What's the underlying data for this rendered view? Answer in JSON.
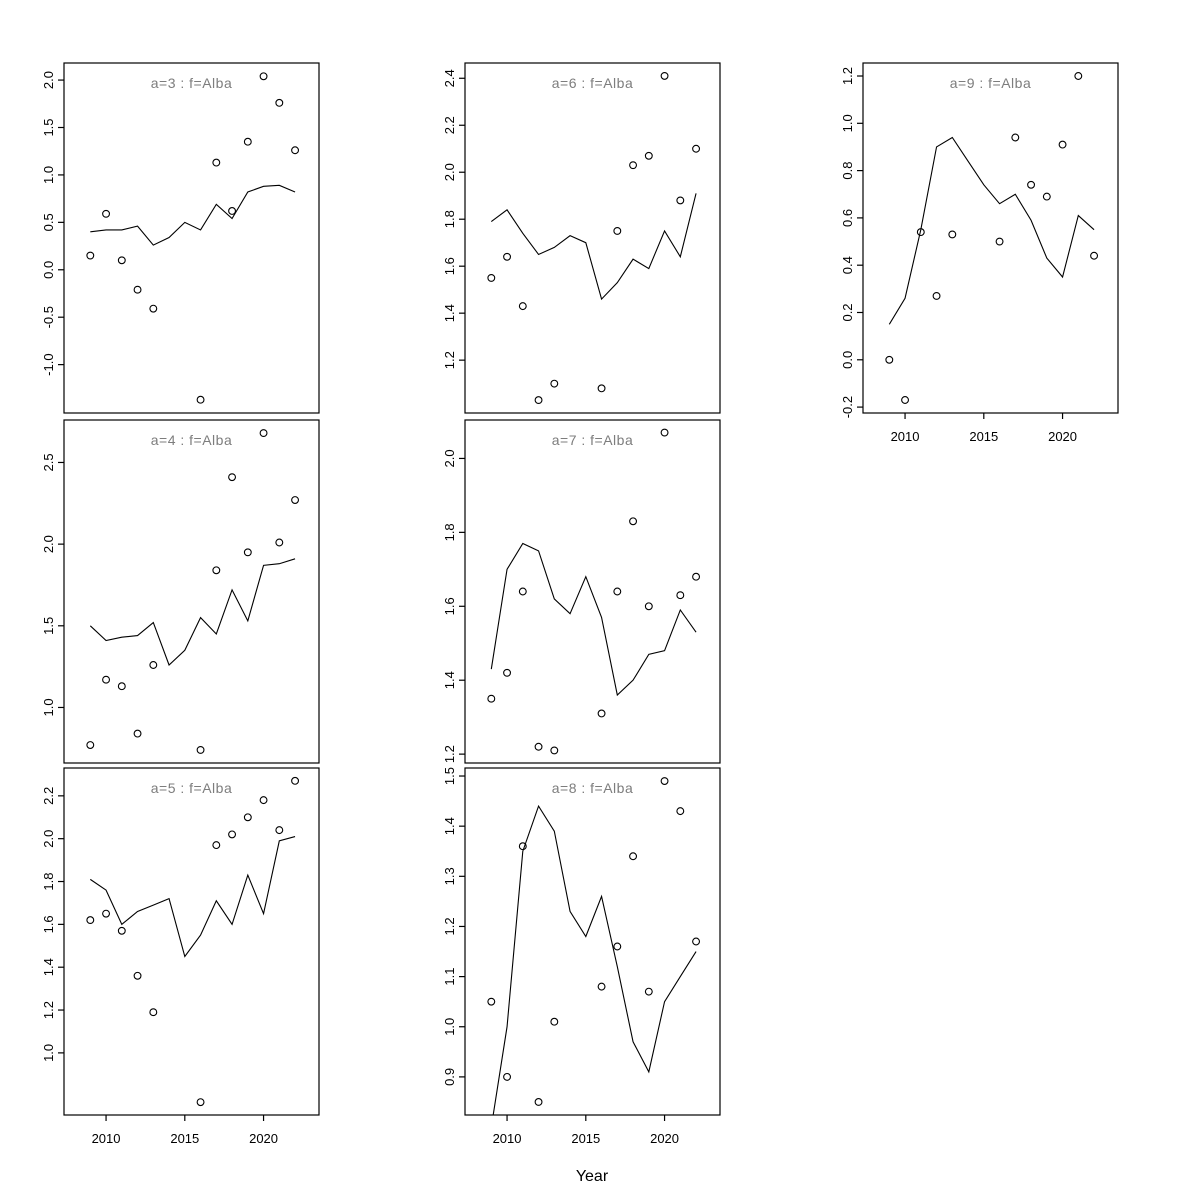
{
  "figure": {
    "x_axis_label": "Year",
    "background": "#ffffff"
  },
  "chart_data": {
    "type": "scatter",
    "xlabel": "Year",
    "ylabel": "",
    "x_ticks": [
      2010,
      2015,
      2020
    ],
    "xlim": [
      2007.33,
      2023.52
    ],
    "grid": "off",
    "legend": "none",
    "point_years": [
      2009,
      2010,
      2011,
      2012,
      2013,
      2016,
      2017,
      2018,
      2019,
      2020,
      2021,
      2022
    ],
    "line_years": [
      2009,
      2010,
      2011,
      2012,
      2013,
      2014,
      2015,
      2016,
      2017,
      2018,
      2019,
      2020,
      2021,
      2022
    ],
    "colors": {
      "line": "#000000",
      "point_stroke": "#000000",
      "panel_title": "#7d7d7d",
      "axis": "#000000",
      "tick_label": "#000000"
    },
    "panels": [
      {
        "id": "a3",
        "title": "a=3 : f=Alba",
        "row": 0,
        "col": 0,
        "show_x_axis": false,
        "y_ticks": [
          -1.0,
          -0.5,
          0.0,
          0.5,
          1.0,
          1.5,
          2.0
        ],
        "ylim": [
          -1.51,
          2.18
        ],
        "points": [
          0.15,
          0.59,
          0.1,
          -0.21,
          -0.41,
          -1.37,
          1.13,
          0.62,
          1.35,
          2.04,
          1.76,
          1.26
        ],
        "line": [
          0.4,
          0.42,
          0.42,
          0.46,
          0.26,
          0.34,
          0.5,
          0.42,
          0.69,
          0.54,
          0.82,
          0.88,
          0.89,
          0.82
        ]
      },
      {
        "id": "a4",
        "title": "a=4 : f=Alba",
        "row": 1,
        "col": 0,
        "show_x_axis": false,
        "y_ticks": [
          1.0,
          1.5,
          2.0,
          2.5
        ],
        "ylim": [
          0.66,
          2.76
        ],
        "points": [
          0.77,
          1.17,
          1.13,
          0.84,
          1.26,
          0.74,
          1.84,
          2.41,
          1.95,
          2.68,
          2.01,
          2.27
        ],
        "line": [
          1.5,
          1.41,
          1.43,
          1.44,
          1.52,
          1.26,
          1.35,
          1.55,
          1.45,
          1.72,
          1.53,
          1.87,
          1.88,
          1.91
        ]
      },
      {
        "id": "a5",
        "title": "a=5 : f=Alba",
        "row": 2,
        "col": 0,
        "show_x_axis": true,
        "y_ticks": [
          1.0,
          1.2,
          1.4,
          1.6,
          1.8,
          2.0,
          2.2
        ],
        "ylim": [
          0.71,
          2.33
        ],
        "points": [
          1.62,
          1.65,
          1.57,
          1.36,
          1.19,
          0.77,
          1.97,
          2.02,
          2.1,
          2.18,
          2.04,
          2.27
        ],
        "line": [
          1.81,
          1.76,
          1.6,
          1.66,
          1.69,
          1.72,
          1.45,
          1.55,
          1.71,
          1.6,
          1.83,
          1.65,
          1.99,
          2.01
        ]
      },
      {
        "id": "a6",
        "title": "a=6 : f=Alba",
        "row": 0,
        "col": 1,
        "show_x_axis": false,
        "y_ticks": [
          1.2,
          1.4,
          1.6,
          1.8,
          2.0,
          2.2,
          2.4
        ],
        "ylim": [
          0.975,
          2.465
        ],
        "points": [
          1.55,
          1.64,
          1.43,
          1.03,
          1.1,
          1.08,
          1.75,
          2.03,
          2.07,
          2.41,
          1.88,
          2.1
        ],
        "line": [
          1.79,
          1.84,
          1.74,
          1.65,
          1.68,
          1.73,
          1.7,
          1.46,
          1.53,
          1.63,
          1.59,
          1.75,
          1.64,
          1.91
        ]
      },
      {
        "id": "a7",
        "title": "a=7 : f=Alba",
        "row": 1,
        "col": 1,
        "show_x_axis": false,
        "y_ticks": [
          1.2,
          1.4,
          1.6,
          1.8,
          2.0
        ],
        "ylim": [
          1.176,
          2.104
        ],
        "points": [
          1.35,
          1.42,
          1.64,
          1.22,
          1.21,
          1.31,
          1.64,
          1.83,
          1.6,
          2.07,
          1.63,
          1.68
        ],
        "line": [
          1.43,
          1.7,
          1.77,
          1.75,
          1.62,
          1.58,
          1.68,
          1.57,
          1.36,
          1.4,
          1.47,
          1.48,
          1.59,
          1.53
        ]
      },
      {
        "id": "a8",
        "title": "a=8 : f=Alba",
        "row": 2,
        "col": 1,
        "show_x_axis": true,
        "y_ticks": [
          0.9,
          1.0,
          1.1,
          1.2,
          1.3,
          1.4,
          1.5
        ],
        "ylim": [
          0.824,
          1.516
        ],
        "points": [
          1.05,
          0.9,
          1.36,
          0.85,
          1.01,
          1.08,
          1.16,
          1.34,
          1.07,
          1.49,
          1.43,
          1.17
        ],
        "line": [
          0.8,
          1.0,
          1.35,
          1.44,
          1.39,
          1.23,
          1.18,
          1.26,
          1.12,
          0.97,
          0.91,
          1.05,
          1.1,
          1.15
        ]
      },
      {
        "id": "a9",
        "title": "a=9 : f=Alba",
        "row": 0,
        "col": 2,
        "show_x_axis": true,
        "y_ticks": [
          -0.2,
          0.0,
          0.2,
          0.4,
          0.6,
          0.8,
          1.0,
          1.2
        ],
        "ylim": [
          -0.225,
          1.255
        ],
        "points": [
          0.0,
          -0.17,
          0.54,
          0.27,
          0.53,
          0.5,
          0.94,
          0.74,
          0.69,
          0.91,
          1.2,
          0.44
        ],
        "line": [
          0.15,
          0.26,
          0.55,
          0.9,
          0.94,
          0.84,
          0.74,
          0.66,
          0.7,
          0.59,
          0.43,
          0.35,
          0.61,
          0.55
        ]
      }
    ]
  }
}
